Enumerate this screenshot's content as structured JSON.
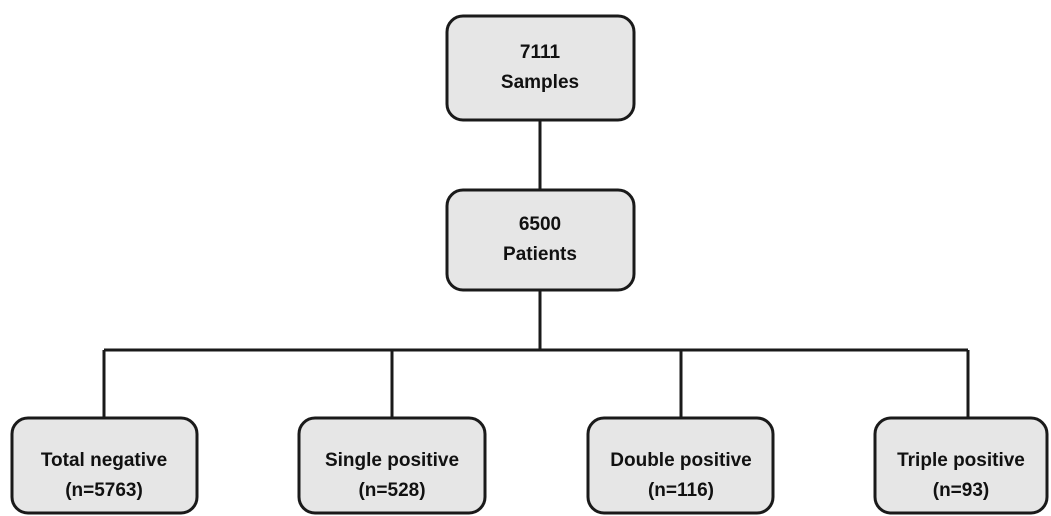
{
  "nodes": [
    {
      "lines": [
        "7111",
        "Samples"
      ]
    },
    {
      "lines": [
        "6500",
        "Patients"
      ]
    },
    {
      "lines": [
        "Total negative",
        "(n=5763)"
      ]
    },
    {
      "lines": [
        "Single positive",
        "(n=528)"
      ]
    },
    {
      "lines": [
        "Double positive",
        "(n=116)"
      ]
    },
    {
      "lines": [
        "Triple positive",
        "(n=93)"
      ]
    }
  ]
}
